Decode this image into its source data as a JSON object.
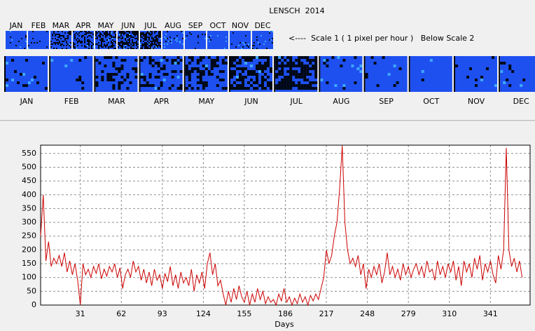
{
  "header": {
    "title": "LENSCH  2014",
    "scale_note": "<----  Scale 1 ( 1 pixel per hour )   Below Scale 2",
    "months": [
      "JAN",
      "FEB",
      "MAR",
      "APR",
      "MAY",
      "JUN",
      "JUL",
      "AUG",
      "SEP",
      "OCT",
      "NOV",
      "DEC"
    ]
  },
  "chart_data": {
    "type": "line",
    "x_label": "Days",
    "color": "#cc0000",
    "grid": true,
    "xlim": [
      1,
      371
    ],
    "ylim": [
      0,
      580
    ],
    "xticks": [
      31,
      62,
      93,
      124,
      155,
      186,
      217,
      248,
      279,
      310,
      341
    ],
    "yticks": [
      0,
      50,
      100,
      150,
      200,
      250,
      300,
      350,
      400,
      450,
      500,
      550
    ],
    "x": [
      1,
      3,
      5,
      7,
      9,
      11,
      13,
      15,
      17,
      19,
      21,
      23,
      25,
      27,
      29,
      31,
      33,
      35,
      37,
      39,
      41,
      43,
      45,
      47,
      49,
      51,
      53,
      55,
      57,
      59,
      61,
      63,
      65,
      67,
      69,
      71,
      73,
      75,
      77,
      79,
      81,
      83,
      85,
      87,
      89,
      91,
      93,
      95,
      97,
      99,
      101,
      103,
      105,
      107,
      109,
      111,
      113,
      115,
      117,
      119,
      121,
      123,
      125,
      127,
      129,
      131,
      133,
      135,
      137,
      139,
      141,
      143,
      145,
      147,
      149,
      151,
      153,
      155,
      157,
      159,
      161,
      163,
      165,
      167,
      169,
      171,
      173,
      175,
      177,
      179,
      181,
      183,
      185,
      187,
      189,
      191,
      193,
      195,
      197,
      199,
      201,
      203,
      205,
      207,
      209,
      211,
      213,
      215,
      217,
      219,
      221,
      223,
      225,
      227,
      229,
      231,
      233,
      235,
      237,
      239,
      241,
      243,
      245,
      247,
      249,
      251,
      253,
      255,
      257,
      259,
      261,
      263,
      265,
      267,
      269,
      271,
      273,
      275,
      277,
      279,
      281,
      283,
      285,
      287,
      289,
      291,
      293,
      295,
      297,
      299,
      301,
      303,
      305,
      307,
      309,
      311,
      313,
      315,
      317,
      319,
      321,
      323,
      325,
      327,
      329,
      331,
      333,
      335,
      337,
      339,
      341,
      343,
      345,
      347,
      349,
      351,
      353,
      355,
      357,
      359,
      361,
      363,
      365
    ],
    "values": [
      250,
      400,
      160,
      230,
      140,
      170,
      150,
      180,
      140,
      190,
      120,
      160,
      110,
      150,
      90,
      0,
      150,
      110,
      130,
      100,
      140,
      115,
      150,
      95,
      130,
      105,
      140,
      120,
      150,
      100,
      135,
      60,
      110,
      130,
      100,
      160,
      120,
      140,
      90,
      130,
      80,
      120,
      70,
      130,
      90,
      110,
      60,
      115,
      85,
      140,
      70,
      110,
      60,
      120,
      80,
      100,
      70,
      130,
      50,
      110,
      80,
      120,
      60,
      150,
      190,
      110,
      150,
      70,
      90,
      40,
      0,
      50,
      10,
      60,
      20,
      70,
      30,
      10,
      50,
      0,
      40,
      10,
      60,
      20,
      50,
      5,
      30,
      10,
      20,
      0,
      40,
      15,
      60,
      10,
      30,
      0,
      25,
      5,
      40,
      10,
      30,
      0,
      35,
      15,
      40,
      20,
      60,
      100,
      200,
      150,
      180,
      250,
      300,
      420,
      578,
      300,
      200,
      150,
      170,
      140,
      180,
      110,
      150,
      60,
      130,
      100,
      140,
      110,
      150,
      80,
      120,
      190,
      110,
      140,
      100,
      130,
      90,
      150,
      110,
      140,
      100,
      130,
      150,
      110,
      140,
      100,
      160,
      120,
      130,
      90,
      160,
      110,
      140,
      100,
      150,
      120,
      160,
      90,
      140,
      70,
      160,
      120,
      150,
      100,
      170,
      130,
      180,
      90,
      150,
      120,
      160,
      110,
      80,
      180,
      130,
      200,
      570,
      200,
      140,
      170,
      120,
      160,
      100
    ]
  }
}
